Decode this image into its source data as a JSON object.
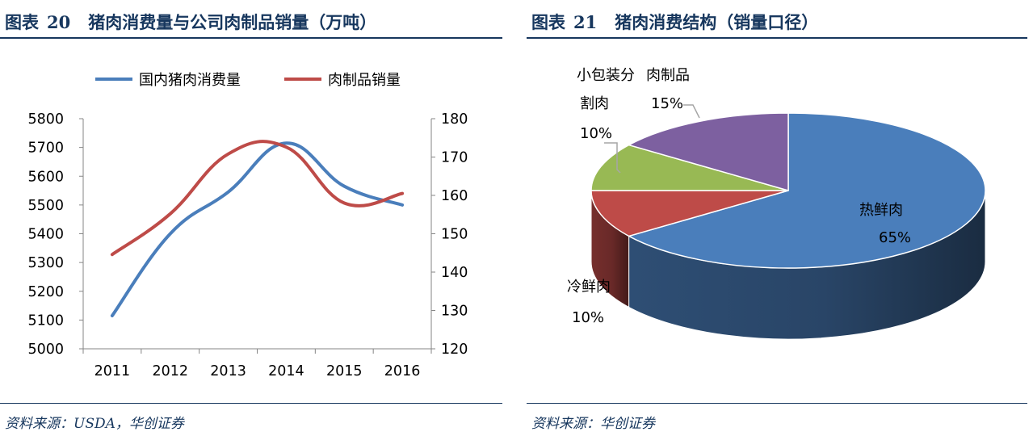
{
  "left": {
    "fig_label": "图表",
    "fig_num": "20",
    "fig_title": "猪肉消费量与公司肉制品销量（万吨）",
    "source": "资料来源：USDA，华创证券"
  },
  "right": {
    "fig_label": "图表",
    "fig_num": "21",
    "fig_title": "猪肉消费结构（销量口径）",
    "source": "资料来源：华创证券"
  },
  "chart_data": [
    {
      "type": "line",
      "title": "猪肉消费量与公司肉制品销量（万吨）",
      "categories": [
        "2011",
        "2012",
        "2013",
        "2014",
        "2015",
        "2016"
      ],
      "left_axis": {
        "ylim": [
          5000,
          5800
        ],
        "ticks": [
          "5800",
          "5700",
          "5600",
          "5500",
          "5400",
          "5300",
          "5200",
          "5100",
          "5000"
        ]
      },
      "right_axis": {
        "ylim": [
          120,
          180
        ],
        "ticks": [
          "180",
          "170",
          "160",
          "150",
          "140",
          "130",
          "120"
        ]
      },
      "legend_position": "top",
      "series": [
        {
          "name": "国内猪肉消费量",
          "axis": "left",
          "color": "#4a7ebb",
          "values": [
            5115,
            5400,
            5545,
            5715,
            5565,
            5500
          ]
        },
        {
          "name": "肉制品销量",
          "axis": "right",
          "color": "#be4b48",
          "values": [
            144.6,
            155.2,
            170.8,
            172.6,
            158.0,
            160.5
          ]
        }
      ]
    },
    {
      "type": "pie",
      "title": "猪肉消费结构（销量口径）",
      "slices": [
        {
          "name": "热鲜肉",
          "value": 65,
          "label": "65%",
          "color": "#4a7ebb"
        },
        {
          "name": "冷鲜肉",
          "value": 10,
          "label": "10%",
          "color": "#be4b48"
        },
        {
          "name_lines": [
            "小包装分",
            "割肉"
          ],
          "value": 10,
          "label": "10%",
          "color": "#98b954"
        },
        {
          "name": "肉制品",
          "value": 15,
          "label": "15%",
          "color": "#7d60a0"
        }
      ]
    }
  ]
}
